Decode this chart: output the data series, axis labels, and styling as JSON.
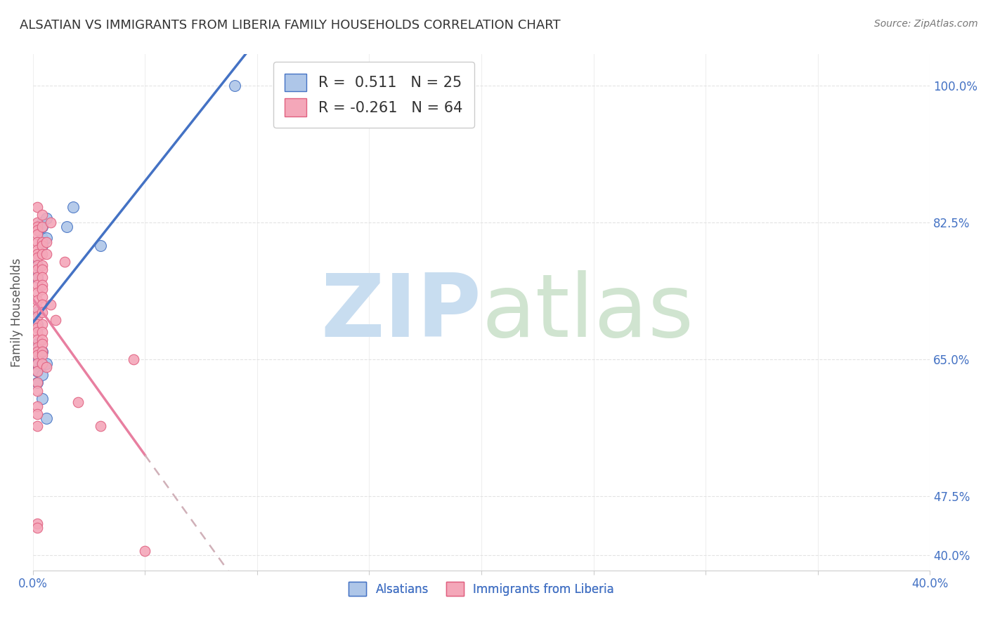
{
  "title": "ALSATIAN VS IMMIGRANTS FROM LIBERIA FAMILY HOUSEHOLDS CORRELATION CHART",
  "source": "Source: ZipAtlas.com",
  "ylabel": "Family Households",
  "yticks": [
    "40.0%",
    "47.5%",
    "65.0%",
    "82.5%",
    "100.0%"
  ],
  "ytick_vals": [
    0.4,
    0.475,
    0.65,
    0.825,
    1.0
  ],
  "legend_entries": [
    {
      "label_r": "R =  0.511",
      "label_n": "N = 25",
      "color": "#aec6e8"
    },
    {
      "label_r": "R = -0.261",
      "label_n": "N = 64",
      "color": "#f4a7b9"
    }
  ],
  "legend_labels_bottom": [
    "Alsatians",
    "Immigrants from Liberia"
  ],
  "alsatian_color": "#aec6e8",
  "liberia_color": "#f4a7b9",
  "alsatian_line_color": "#4472c4",
  "liberia_line_color": "#e87fa0",
  "liberia_line_dashed_color": "#d0b0b8",
  "watermark_zip": "ZIP",
  "watermark_atlas": "atlas",
  "watermark_color": "#c8ddf0",
  "alsatian_points": [
    [
      0.2,
      77.0
    ],
    [
      0.2,
      75.5
    ],
    [
      0.2,
      71.0
    ],
    [
      0.2,
      69.5
    ],
    [
      0.2,
      67.0
    ],
    [
      0.2,
      65.5
    ],
    [
      0.2,
      64.5
    ],
    [
      0.2,
      63.5
    ],
    [
      0.2,
      62.0
    ],
    [
      0.4,
      82.5
    ],
    [
      0.4,
      82.0
    ],
    [
      0.4,
      80.5
    ],
    [
      0.4,
      79.5
    ],
    [
      0.4,
      66.0
    ],
    [
      0.4,
      64.5
    ],
    [
      0.4,
      63.0
    ],
    [
      0.4,
      60.0
    ],
    [
      0.6,
      83.0
    ],
    [
      0.6,
      80.5
    ],
    [
      0.6,
      64.5
    ],
    [
      0.6,
      57.5
    ],
    [
      1.5,
      82.0
    ],
    [
      1.8,
      84.5
    ],
    [
      3.0,
      79.5
    ],
    [
      9.0,
      100.0
    ]
  ],
  "liberia_points": [
    [
      0.2,
      84.5
    ],
    [
      0.2,
      82.5
    ],
    [
      0.2,
      82.0
    ],
    [
      0.2,
      81.5
    ],
    [
      0.2,
      81.0
    ],
    [
      0.2,
      80.0
    ],
    [
      0.2,
      79.0
    ],
    [
      0.2,
      78.5
    ],
    [
      0.2,
      78.0
    ],
    [
      0.2,
      77.0
    ],
    [
      0.2,
      76.5
    ],
    [
      0.2,
      75.5
    ],
    [
      0.2,
      74.5
    ],
    [
      0.2,
      73.5
    ],
    [
      0.2,
      72.5
    ],
    [
      0.2,
      71.5
    ],
    [
      0.2,
      70.5
    ],
    [
      0.2,
      69.5
    ],
    [
      0.2,
      69.0
    ],
    [
      0.2,
      68.5
    ],
    [
      0.2,
      67.5
    ],
    [
      0.2,
      66.5
    ],
    [
      0.2,
      66.0
    ],
    [
      0.2,
      65.5
    ],
    [
      0.2,
      64.5
    ],
    [
      0.2,
      63.5
    ],
    [
      0.2,
      62.0
    ],
    [
      0.2,
      61.0
    ],
    [
      0.2,
      59.0
    ],
    [
      0.2,
      58.0
    ],
    [
      0.2,
      56.5
    ],
    [
      0.2,
      44.0
    ],
    [
      0.2,
      43.5
    ],
    [
      0.4,
      83.5
    ],
    [
      0.4,
      82.0
    ],
    [
      0.4,
      80.0
    ],
    [
      0.4,
      79.5
    ],
    [
      0.4,
      78.5
    ],
    [
      0.4,
      77.0
    ],
    [
      0.4,
      76.5
    ],
    [
      0.4,
      75.5
    ],
    [
      0.4,
      74.5
    ],
    [
      0.4,
      74.0
    ],
    [
      0.4,
      73.0
    ],
    [
      0.4,
      72.0
    ],
    [
      0.4,
      71.0
    ],
    [
      0.4,
      69.5
    ],
    [
      0.4,
      68.5
    ],
    [
      0.4,
      67.5
    ],
    [
      0.4,
      67.0
    ],
    [
      0.4,
      66.0
    ],
    [
      0.4,
      65.5
    ],
    [
      0.4,
      64.5
    ],
    [
      0.6,
      80.0
    ],
    [
      0.6,
      78.5
    ],
    [
      0.6,
      64.0
    ],
    [
      0.8,
      82.5
    ],
    [
      0.8,
      72.0
    ],
    [
      1.0,
      70.0
    ],
    [
      1.4,
      77.5
    ],
    [
      2.0,
      59.5
    ],
    [
      3.0,
      56.5
    ],
    [
      4.5,
      65.0
    ],
    [
      5.0,
      40.5
    ]
  ],
  "xmin": 0.0,
  "xmax": 40.0,
  "ymin": 38.0,
  "ymax": 104.0,
  "background_color": "#ffffff",
  "title_color": "#333333",
  "axis_label_color": "#4472c4",
  "grid_color": "#e0e0e0"
}
